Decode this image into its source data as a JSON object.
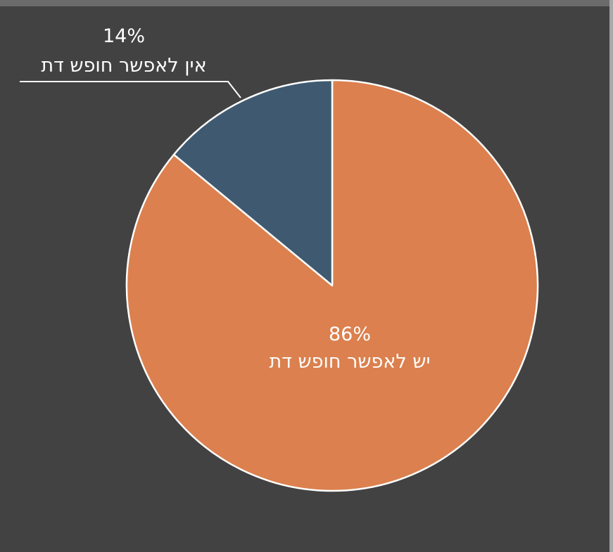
{
  "chart_data": {
    "type": "pie",
    "title": "",
    "slices": [
      {
        "label": "יש לאפשר חופש דת",
        "value": 86,
        "value_label": "86%",
        "color": "#DB804E"
      },
      {
        "label": "אין לאפשר חופש דת",
        "value": 14,
        "value_label": "14%",
        "color": "#3F5A70"
      }
    ],
    "start": "12 o'clock",
    "direction": "clockwise",
    "legend": "none",
    "background": "#434242",
    "slice_border_color": "#FFFFFF"
  }
}
